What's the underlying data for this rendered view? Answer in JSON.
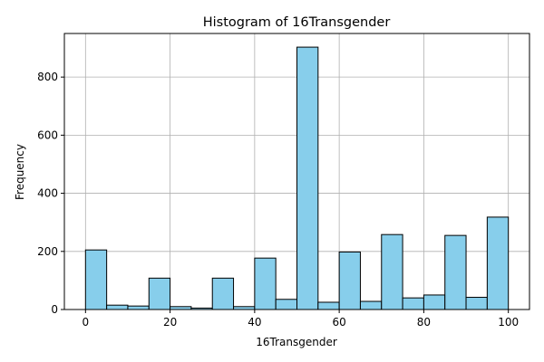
{
  "chart_data": {
    "type": "bar",
    "title": "Histogram of 16Transgender",
    "xlabel": "16Transgender",
    "ylabel": "Frequency",
    "bin_edges": [
      0,
      5,
      10,
      15,
      20,
      25,
      30,
      35,
      40,
      45,
      50,
      55,
      60,
      65,
      70,
      75,
      80,
      85,
      90,
      95,
      100
    ],
    "values": [
      205,
      15,
      12,
      108,
      10,
      5,
      108,
      10,
      177,
      35,
      903,
      25,
      198,
      28,
      258,
      40,
      50,
      255,
      42,
      318
    ],
    "xlim": [
      -5,
      105
    ],
    "ylim": [
      0,
      950
    ],
    "xticks": [
      0,
      20,
      40,
      60,
      80,
      100
    ],
    "yticks": [
      0,
      200,
      400,
      600,
      800
    ],
    "grid": true,
    "bar_color": "#87CEEB",
    "edge_color": "#000000"
  }
}
